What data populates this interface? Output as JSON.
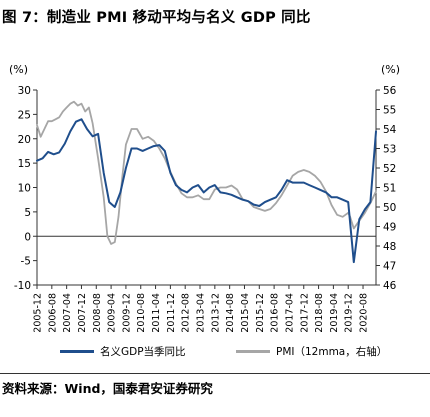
{
  "title": "图 7：制造业 PMI 移动平均与名义 GDP 同比",
  "source": "资料来源：Wind，国泰君安证券研究",
  "chart_data": {
    "type": "line",
    "left_axis": {
      "label": "(%)",
      "min": -10,
      "max": 30,
      "ticks": [
        -10,
        -5,
        0,
        5,
        10,
        15,
        20,
        25,
        30
      ]
    },
    "right_axis": {
      "label": "(%)",
      "min": 46,
      "max": 56,
      "ticks": [
        46,
        47,
        48,
        49,
        50,
        51,
        52,
        53,
        54,
        55,
        56
      ]
    },
    "x_ticks": [
      "2005-12",
      "2006-08",
      "2007-04",
      "2007-12",
      "2008-08",
      "2009-04",
      "2009-12",
      "2010-08",
      "2011-04",
      "2011-12",
      "2012-08",
      "2013-04",
      "2013-12",
      "2014-08",
      "2015-04",
      "2015-12",
      "2016-08",
      "2017-04",
      "2017-12",
      "2018-08",
      "2019-04",
      "2019-12",
      "2020-08"
    ],
    "series": [
      {
        "name": "名义GDP当季同比",
        "axis": "left",
        "color": "#1f4e8c",
        "points": [
          [
            "2005-12",
            15.5
          ],
          [
            "2006-03",
            16.0
          ],
          [
            "2006-06",
            17.3
          ],
          [
            "2006-09",
            16.8
          ],
          [
            "2006-12",
            17.2
          ],
          [
            "2007-03",
            19.0
          ],
          [
            "2007-06",
            21.5
          ],
          [
            "2007-09",
            23.5
          ],
          [
            "2007-12",
            24.0
          ],
          [
            "2008-03",
            22.0
          ],
          [
            "2008-06",
            20.5
          ],
          [
            "2008-09",
            21.0
          ],
          [
            "2008-12",
            13.0
          ],
          [
            "2009-03",
            7.0
          ],
          [
            "2009-06",
            6.0
          ],
          [
            "2009-09",
            9.0
          ],
          [
            "2009-12",
            14.0
          ],
          [
            "2010-03",
            18.0
          ],
          [
            "2010-06",
            18.0
          ],
          [
            "2010-09",
            17.5
          ],
          [
            "2010-12",
            18.0
          ],
          [
            "2011-03",
            18.5
          ],
          [
            "2011-06",
            18.7
          ],
          [
            "2011-09",
            17.5
          ],
          [
            "2011-12",
            13.0
          ],
          [
            "2012-03",
            10.5
          ],
          [
            "2012-06",
            9.5
          ],
          [
            "2012-09",
            9.0
          ],
          [
            "2012-12",
            10.0
          ],
          [
            "2013-03",
            10.5
          ],
          [
            "2013-06",
            9.0
          ],
          [
            "2013-09",
            10.0
          ],
          [
            "2013-12",
            10.5
          ],
          [
            "2014-03",
            9.0
          ],
          [
            "2014-06",
            8.8
          ],
          [
            "2014-09",
            8.5
          ],
          [
            "2014-12",
            8.0
          ],
          [
            "2015-03",
            7.5
          ],
          [
            "2015-06",
            7.2
          ],
          [
            "2015-09",
            6.5
          ],
          [
            "2015-12",
            6.2
          ],
          [
            "2016-03",
            7.0
          ],
          [
            "2016-06",
            7.5
          ],
          [
            "2016-09",
            8.0
          ],
          [
            "2016-12",
            9.5
          ],
          [
            "2017-03",
            11.5
          ],
          [
            "2017-06",
            11.0
          ],
          [
            "2017-09",
            11.0
          ],
          [
            "2017-12",
            11.0
          ],
          [
            "2018-03",
            10.5
          ],
          [
            "2018-06",
            10.0
          ],
          [
            "2018-09",
            9.5
          ],
          [
            "2018-12",
            9.0
          ],
          [
            "2019-03",
            8.0
          ],
          [
            "2019-06",
            8.0
          ],
          [
            "2019-09",
            7.5
          ],
          [
            "2019-12",
            7.0
          ],
          [
            "2020-03",
            -5.3
          ],
          [
            "2020-06",
            3.5
          ],
          [
            "2020-09",
            5.5
          ],
          [
            "2020-12",
            7.0
          ],
          [
            "2021-03",
            21.5
          ]
        ]
      },
      {
        "name": "PMI（12mma，右轴）",
        "axis": "right",
        "color": "#a6a6a6",
        "points": [
          [
            "2005-12",
            54.2
          ],
          [
            "2006-02",
            53.6
          ],
          [
            "2006-04",
            54.0
          ],
          [
            "2006-06",
            54.4
          ],
          [
            "2006-08",
            54.4
          ],
          [
            "2006-10",
            54.5
          ],
          [
            "2006-12",
            54.6
          ],
          [
            "2007-02",
            54.9
          ],
          [
            "2007-04",
            55.1
          ],
          [
            "2007-06",
            55.3
          ],
          [
            "2007-08",
            55.4
          ],
          [
            "2007-10",
            55.2
          ],
          [
            "2007-12",
            55.3
          ],
          [
            "2008-02",
            54.9
          ],
          [
            "2008-04",
            55.1
          ],
          [
            "2008-06",
            54.3
          ],
          [
            "2008-09",
            52.5
          ],
          [
            "2008-12",
            50.5
          ],
          [
            "2009-02",
            48.5
          ],
          [
            "2009-04",
            48.1
          ],
          [
            "2009-06",
            48.2
          ],
          [
            "2009-08",
            49.5
          ],
          [
            "2009-10",
            51.5
          ],
          [
            "2009-12",
            53.2
          ],
          [
            "2010-03",
            54.0
          ],
          [
            "2010-06",
            54.0
          ],
          [
            "2010-09",
            53.5
          ],
          [
            "2010-12",
            53.6
          ],
          [
            "2011-03",
            53.4
          ],
          [
            "2011-06",
            53.0
          ],
          [
            "2011-09",
            52.5
          ],
          [
            "2011-12",
            51.8
          ],
          [
            "2012-03",
            51.2
          ],
          [
            "2012-06",
            50.7
          ],
          [
            "2012-09",
            50.5
          ],
          [
            "2012-12",
            50.5
          ],
          [
            "2013-03",
            50.6
          ],
          [
            "2013-06",
            50.4
          ],
          [
            "2013-09",
            50.4
          ],
          [
            "2013-12",
            50.9
          ],
          [
            "2014-03",
            51.0
          ],
          [
            "2014-06",
            51.0
          ],
          [
            "2014-09",
            51.1
          ],
          [
            "2014-12",
            50.9
          ],
          [
            "2015-03",
            50.4
          ],
          [
            "2015-06",
            50.3
          ],
          [
            "2015-09",
            50.0
          ],
          [
            "2015-12",
            49.9
          ],
          [
            "2016-03",
            49.8
          ],
          [
            "2016-06",
            49.9
          ],
          [
            "2016-09",
            50.2
          ],
          [
            "2016-12",
            50.6
          ],
          [
            "2017-03",
            51.1
          ],
          [
            "2017-06",
            51.6
          ],
          [
            "2017-09",
            51.8
          ],
          [
            "2017-12",
            51.9
          ],
          [
            "2018-03",
            51.8
          ],
          [
            "2018-06",
            51.6
          ],
          [
            "2018-09",
            51.3
          ],
          [
            "2018-12",
            50.8
          ],
          [
            "2019-03",
            50.1
          ],
          [
            "2019-06",
            49.6
          ],
          [
            "2019-09",
            49.5
          ],
          [
            "2019-12",
            49.7
          ],
          [
            "2020-01",
            49.5
          ],
          [
            "2020-03",
            48.9
          ],
          [
            "2020-06",
            49.3
          ],
          [
            "2020-09",
            49.7
          ],
          [
            "2020-12",
            50.2
          ],
          [
            "2021-03",
            50.8
          ]
        ]
      }
    ],
    "legend_position": "bottom",
    "grid": false
  }
}
